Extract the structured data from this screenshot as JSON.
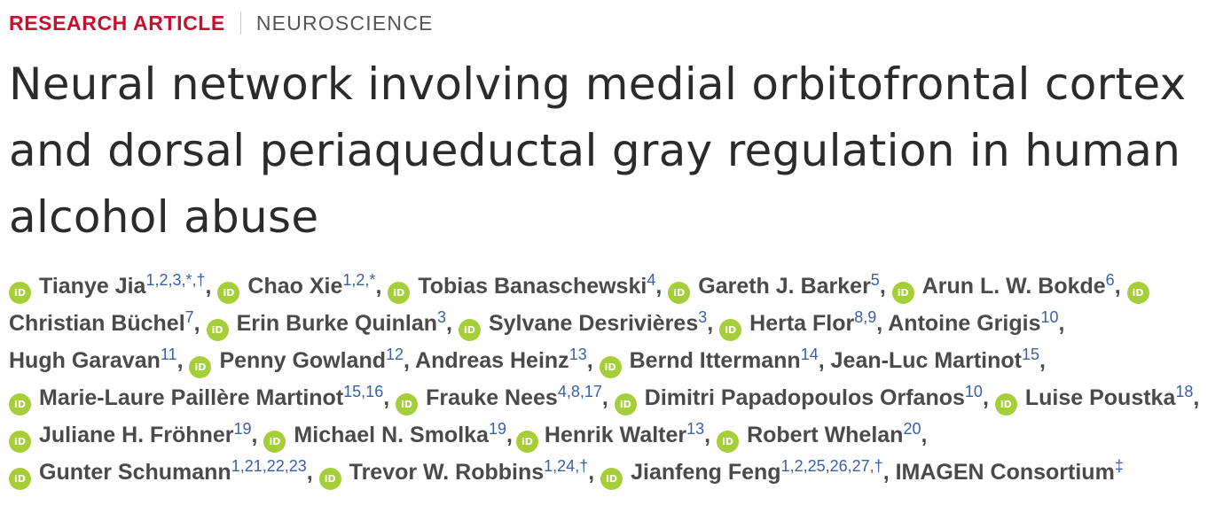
{
  "header": {
    "article_type": "RESEARCH ARTICLE",
    "subject": "NEUROSCIENCE"
  },
  "title": "Neural network involving medial orbitofrontal cortex and dorsal periaqueductal gray regulation in human alcohol abuse",
  "orcid_icon_text": "iD",
  "separator": ",",
  "colors": {
    "kicker": "#c8102e",
    "orcid": "#a6ce39",
    "affiliation": "#3860a8"
  },
  "authors": [
    {
      "name": "Tianye Jia",
      "aff": "1,2,3,*,†"
    },
    {
      "name": "Chao Xie",
      "aff": "1,2,*"
    },
    {
      "name": "Tobias Banaschewski",
      "aff": "4"
    },
    {
      "name": "Gareth J. Barker",
      "aff": "5"
    },
    {
      "name": "Arun L. W. Bokde",
      "aff": "6"
    },
    {
      "name": "Christian Büchel",
      "aff": "7"
    },
    {
      "name": "Erin Burke Quinlan",
      "aff": "3"
    },
    {
      "name": "Sylvane Desrivières",
      "aff": "3"
    },
    {
      "name": "Herta Flor",
      "aff": "8,9"
    },
    {
      "name": "Antoine Grigis",
      "aff": "10"
    },
    {
      "name": "Hugh Garavan",
      "aff": "11"
    },
    {
      "name": "Penny Gowland",
      "aff": "12"
    },
    {
      "name": "Andreas Heinz",
      "aff": "13"
    },
    {
      "name": "Bernd Ittermann",
      "aff": "14"
    },
    {
      "name": "Jean-Luc Martinot",
      "aff": "15"
    },
    {
      "name": "Marie-Laure Paillère Martinot",
      "aff": "15,16"
    },
    {
      "name": "Frauke Nees",
      "aff": "4,8,17"
    },
    {
      "name": "Dimitri Papadopoulos Orfanos",
      "aff": "10"
    },
    {
      "name": "Luise Poustka",
      "aff": "18"
    },
    {
      "name": "Juliane H. Fröhner",
      "aff": "19"
    },
    {
      "name": "Michael N. Smolka",
      "aff": "19"
    },
    {
      "name": "Henrik Walter",
      "aff": "13"
    },
    {
      "name": "Robert Whelan",
      "aff": "20"
    },
    {
      "name": "Gunter Schumann",
      "aff": "1,21,22,23"
    },
    {
      "name": "Trevor W. Robbins",
      "aff": "1,24,†"
    },
    {
      "name": "Jianfeng Feng",
      "aff": "1,2,25,26,27,†"
    },
    {
      "name": "IMAGEN Consortium",
      "aff": "‡"
    }
  ]
}
